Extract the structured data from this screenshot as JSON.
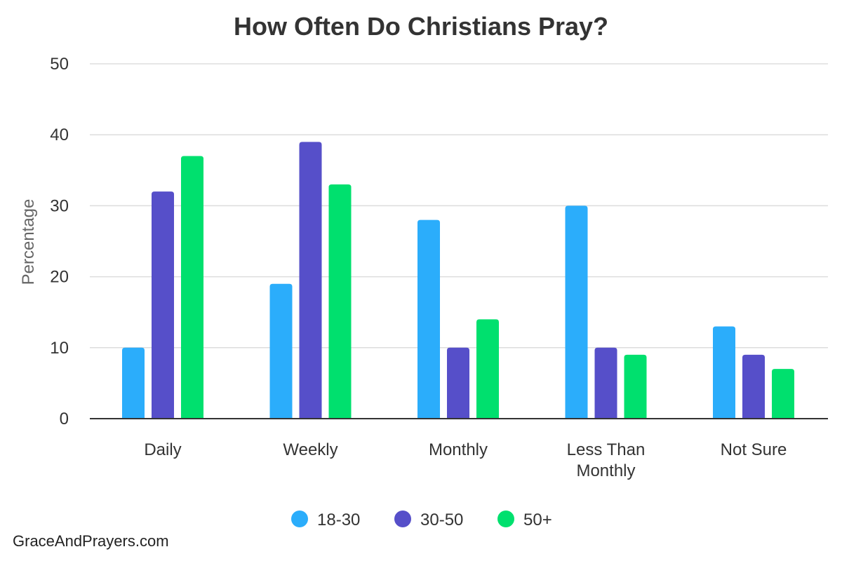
{
  "chart_data": {
    "type": "bar",
    "title": "How Often Do Christians Pray?",
    "ylabel": "Percentage",
    "xlabel": "",
    "ylim": [
      0,
      50
    ],
    "yticks": [
      0,
      10,
      20,
      30,
      40,
      50
    ],
    "categories": [
      "Daily",
      "Weekly",
      "Monthly",
      "Less Than Monthly",
      "Not Sure"
    ],
    "category_lines": [
      [
        "Daily"
      ],
      [
        "Weekly"
      ],
      [
        "Monthly"
      ],
      [
        "Less Than",
        "Monthly"
      ],
      [
        "Not Sure"
      ]
    ],
    "series": [
      {
        "name": "18-30",
        "color": "#2BADFB",
        "values": [
          10,
          19,
          28,
          30,
          13
        ]
      },
      {
        "name": "30-50",
        "color": "#564FC9",
        "values": [
          32,
          39,
          10,
          10,
          9
        ]
      },
      {
        "name": "50+",
        "color": "#00E06E",
        "values": [
          37,
          33,
          14,
          9,
          7
        ]
      }
    ],
    "grid": true,
    "legend": "bottom-center"
  },
  "watermark": "GraceAndPrayers.com"
}
